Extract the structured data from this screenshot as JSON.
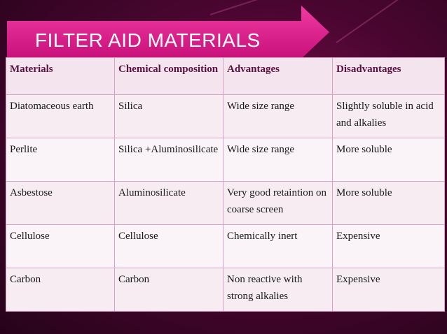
{
  "title": "FILTER AID MATERIALS",
  "table": {
    "headers": [
      "Materials",
      "Chemical composition",
      "Advantages",
      "Disadvantages"
    ],
    "rows": [
      [
        "Diatomaceous earth",
        "Silica",
        "Wide size range",
        "Slightly soluble in acid and alkalies"
      ],
      [
        "Perlite",
        "Silica +Aluminosilicate",
        "Wide size range",
        "More soluble"
      ],
      [
        "Asbestose",
        "Aluminosilicate",
        "Very good retaintion on coarse screen",
        "More soluble"
      ],
      [
        "Cellulose",
        "Cellulose",
        "Chemically inert",
        "Expensive"
      ],
      [
        "Carbon",
        "Carbon",
        "Non reactive with strong alkalies",
        "Expensive"
      ]
    ]
  },
  "colors": {
    "background": "#4a0630",
    "banner": "#e01a8c",
    "header_text": "#5a1142",
    "table_border": "#d4a3c3"
  }
}
